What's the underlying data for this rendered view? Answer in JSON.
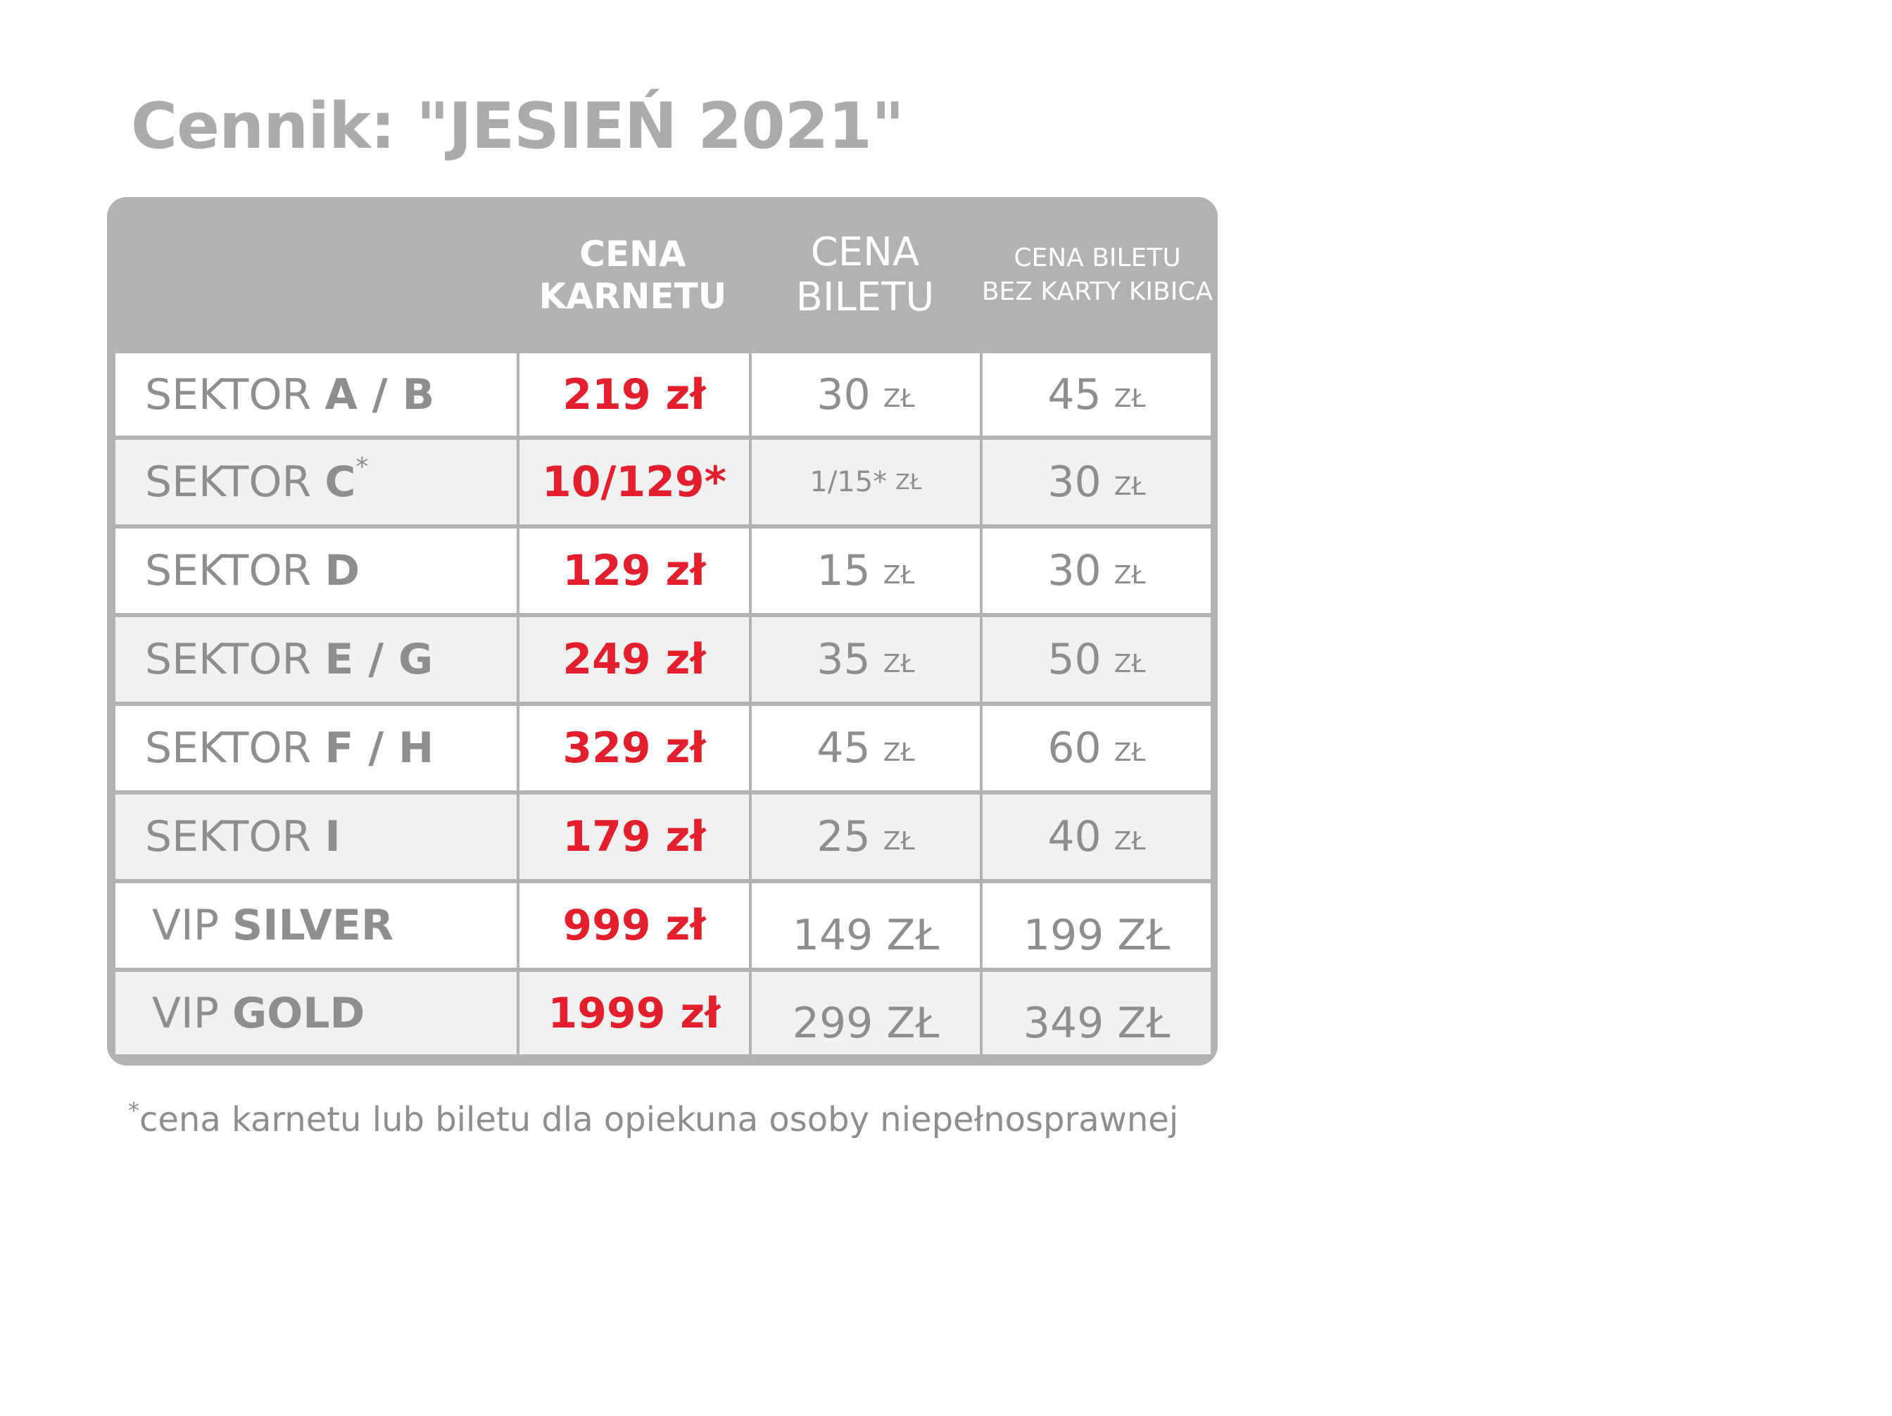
{
  "title": "Cennik: \"JESIEŃ 2021\"",
  "table": {
    "headers": [
      "",
      "CENA\nKARNETU",
      "CENA\nBILETU",
      "CENA BILETU\nBEZ KARTY KIBICA"
    ],
    "rows": [
      {
        "prefix": "SEKTOR",
        "name": "A / B",
        "sup": "",
        "season": "219 zł",
        "ticket_num": "30",
        "ticket_unit": "ZŁ",
        "noncard_num": "45",
        "noncard_unit": "ZŁ"
      },
      {
        "prefix": "SEKTOR",
        "name": "C",
        "sup": "*",
        "season": "10/129*",
        "ticket_num": "1/15*",
        "ticket_unit": "ZŁ",
        "noncard_num": "30",
        "noncard_unit": "ZŁ"
      },
      {
        "prefix": "SEKTOR",
        "name": "D",
        "sup": "",
        "season": "129 zł",
        "ticket_num": "15",
        "ticket_unit": "ZŁ",
        "noncard_num": "30",
        "noncard_unit": "ZŁ"
      },
      {
        "prefix": "SEKTOR",
        "name": "E / G",
        "sup": "",
        "season": "249 zł",
        "ticket_num": "35",
        "ticket_unit": "ZŁ",
        "noncard_num": "50",
        "noncard_unit": "ZŁ"
      },
      {
        "prefix": "SEKTOR",
        "name": "F / H",
        "sup": "",
        "season": "329 zł",
        "ticket_num": "45",
        "ticket_unit": "ZŁ",
        "noncard_num": "60",
        "noncard_unit": "ZŁ"
      },
      {
        "prefix": "SEKTOR",
        "name": "I",
        "sup": "",
        "season": "179 zł",
        "ticket_num": "25",
        "ticket_unit": "ZŁ",
        "noncard_num": "40",
        "noncard_unit": "ZŁ"
      },
      {
        "prefix": "VIP",
        "name": "SILVER",
        "sup": "",
        "season": "999 zł",
        "ticket": "149 ZŁ",
        "noncard": "199 ZŁ"
      },
      {
        "prefix": "VIP",
        "name": "GOLD",
        "sup": "",
        "season": "1999 zł",
        "ticket": "299 ZŁ",
        "noncard": "349 ZŁ"
      }
    ]
  },
  "footnote": {
    "star": "*",
    "text": "cena karnetu lub biletu dla opiekuna osoby niepełnosprawnej"
  },
  "colors": {
    "accent_red": "#e31e2d",
    "header_gray": "#b2b2b2",
    "text_gray": "#8e8e8e",
    "title_gray": "#ababab",
    "row_alt": "#f1f1f1"
  }
}
